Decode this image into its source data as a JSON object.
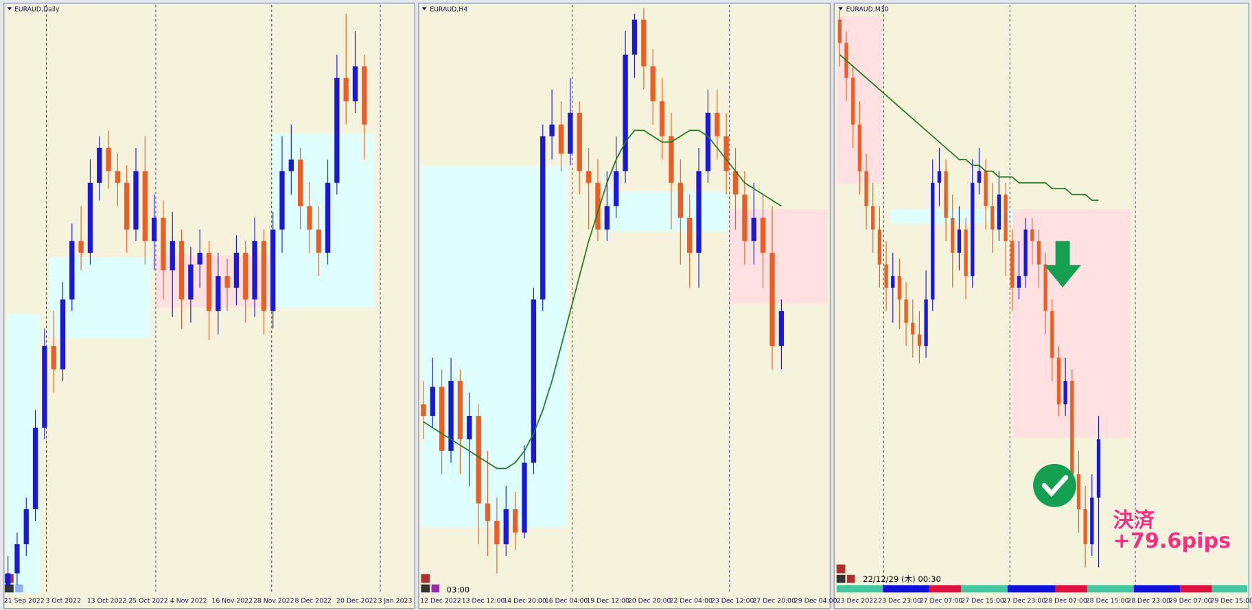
{
  "up_color": "#1a1ad6",
  "down_color": "#ec5f24",
  "ma_color": "#1f7a1f",
  "panels": [
    {
      "title": "EURAUD,Daily",
      "ylim": [
        0,
        100
      ],
      "ohlc": [
        [
          1,
          6,
          0,
          3
        ],
        [
          3,
          10,
          1,
          8
        ],
        [
          8,
          16,
          6,
          14
        ],
        [
          14,
          31,
          12,
          28
        ],
        [
          28,
          45,
          26,
          42
        ],
        [
          42,
          48,
          34,
          38
        ],
        [
          38,
          53,
          36,
          50
        ],
        [
          50,
          63,
          48,
          60
        ],
        [
          60,
          66,
          55,
          58
        ],
        [
          58,
          74,
          56,
          70
        ],
        [
          70,
          78,
          67,
          76
        ],
        [
          76,
          79,
          69,
          72
        ],
        [
          72,
          75,
          66,
          70
        ],
        [
          70,
          73,
          58,
          62
        ],
        [
          62,
          76,
          60,
          72
        ],
        [
          72,
          78,
          56,
          60
        ],
        [
          60,
          68,
          55,
          64
        ],
        [
          64,
          67,
          50,
          55
        ],
        [
          55,
          65,
          47,
          60
        ],
        [
          60,
          62,
          45,
          50
        ],
        [
          50,
          59,
          46,
          56
        ],
        [
          56,
          62,
          52,
          58
        ],
        [
          58,
          60,
          43,
          48
        ],
        [
          48,
          58,
          44,
          54
        ],
        [
          54,
          57,
          48,
          52
        ],
        [
          52,
          61,
          49,
          58
        ],
        [
          58,
          60,
          46,
          50
        ],
        [
          50,
          64,
          47,
          60
        ],
        [
          60,
          62,
          44,
          48
        ],
        [
          48,
          65,
          45,
          62
        ],
        [
          62,
          78,
          58,
          72
        ],
        [
          72,
          80,
          68,
          74
        ],
        [
          74,
          76,
          62,
          66
        ],
        [
          66,
          70,
          58,
          62
        ],
        [
          62,
          66,
          54,
          58
        ],
        [
          58,
          74,
          56,
          70
        ],
        [
          70,
          92,
          68,
          88
        ],
        [
          88,
          99,
          80,
          84
        ],
        [
          84,
          96,
          82,
          90
        ],
        [
          90,
          92,
          74,
          80
        ]
      ],
      "time_labels": [
        "21 Sep 2022",
        "3 Oct 2022",
        "13 Oct 2022",
        "25 Oct 2022",
        "4 Nov 2022",
        "16 Nov 2022",
        "28 Nov 2022",
        "8 Dec 2022",
        "20 Dec 2022",
        "3 Jan 2023"
      ]
    },
    {
      "title": "EURAUD,H4",
      "ylim": [
        0,
        100
      ],
      "ohlc": [
        [
          32,
          36,
          26,
          30
        ],
        [
          30,
          40,
          28,
          35
        ],
        [
          35,
          38,
          20,
          24
        ],
        [
          24,
          40,
          22,
          36
        ],
        [
          36,
          38,
          20,
          26
        ],
        [
          26,
          34,
          18,
          30
        ],
        [
          30,
          32,
          8,
          15
        ],
        [
          15,
          24,
          6,
          12
        ],
        [
          12,
          16,
          3,
          8
        ],
        [
          8,
          18,
          6,
          14
        ],
        [
          14,
          17,
          7,
          10
        ],
        [
          10,
          25,
          9,
          22
        ],
        [
          22,
          52,
          20,
          50
        ],
        [
          50,
          80,
          48,
          78
        ],
        [
          78,
          86,
          74,
          80
        ],
        [
          80,
          84,
          72,
          75
        ],
        [
          75,
          88,
          73,
          82
        ],
        [
          82,
          84,
          68,
          72
        ],
        [
          72,
          76,
          62,
          70
        ],
        [
          70,
          74,
          60,
          62
        ],
        [
          62,
          72,
          60,
          66
        ],
        [
          66,
          78,
          64,
          72
        ],
        [
          72,
          96,
          70,
          92
        ],
        [
          92,
          99,
          88,
          98
        ],
        [
          98,
          100,
          86,
          90
        ],
        [
          90,
          93,
          80,
          84
        ],
        [
          84,
          88,
          74,
          78
        ],
        [
          78,
          82,
          62,
          70
        ],
        [
          70,
          74,
          56,
          64
        ],
        [
          64,
          68,
          52,
          58
        ],
        [
          58,
          76,
          52,
          72
        ],
        [
          72,
          86,
          70,
          82
        ],
        [
          82,
          86,
          74,
          78
        ],
        [
          78,
          82,
          68,
          72
        ],
        [
          72,
          76,
          62,
          68
        ],
        [
          68,
          72,
          56,
          60
        ],
        [
          60,
          70,
          56,
          64
        ],
        [
          64,
          68,
          52,
          58
        ],
        [
          58,
          66,
          38,
          42
        ],
        [
          42,
          50,
          38,
          48
        ]
      ],
      "ma": [
        29,
        28,
        27,
        26,
        25,
        24,
        23,
        22,
        21,
        21,
        22,
        24,
        27,
        31,
        36,
        42,
        48,
        54,
        60,
        65,
        70,
        74,
        77,
        79,
        79,
        78,
        77,
        77,
        78,
        79,
        79,
        78,
        76,
        74,
        72,
        70,
        69,
        68,
        67,
        66
      ],
      "time_labels": [
        "12 Dec 2022",
        "13 Dec 12:00",
        "14 Dec 20:00",
        "16 Dec 04:00",
        "19 Dec 12:00",
        "20 Dec 20:00",
        "22 Dec 04:00",
        "23 Dec 12:00",
        "27 Dec 20:00",
        "29 Dec 04:00"
      ],
      "cursor_time": "03:00"
    },
    {
      "title": "EURAUD,M30",
      "ylim": [
        0,
        100
      ],
      "ohlc": [
        [
          98,
          100,
          90,
          94
        ],
        [
          94,
          96,
          84,
          88
        ],
        [
          88,
          90,
          76,
          80
        ],
        [
          80,
          84,
          68,
          72
        ],
        [
          72,
          75,
          62,
          66
        ],
        [
          66,
          70,
          58,
          62
        ],
        [
          62,
          66,
          52,
          56
        ],
        [
          56,
          60,
          48,
          52
        ],
        [
          52,
          58,
          46,
          54
        ],
        [
          54,
          57,
          45,
          50
        ],
        [
          50,
          53,
          42,
          46
        ],
        [
          46,
          50,
          40,
          44
        ],
        [
          44,
          48,
          39,
          42
        ],
        [
          42,
          55,
          40,
          50
        ],
        [
          50,
          74,
          48,
          70
        ],
        [
          70,
          76,
          66,
          72
        ],
        [
          72,
          74,
          60,
          64
        ],
        [
          64,
          68,
          52,
          58
        ],
        [
          58,
          66,
          55,
          62
        ],
        [
          62,
          64,
          50,
          54
        ],
        [
          54,
          74,
          52,
          70
        ],
        [
          70,
          76,
          68,
          72
        ],
        [
          72,
          74,
          62,
          66
        ],
        [
          66,
          70,
          58,
          62
        ],
        [
          62,
          72,
          60,
          68
        ],
        [
          68,
          70,
          54,
          60
        ],
        [
          60,
          62,
          48,
          52
        ],
        [
          52,
          60,
          50,
          54
        ],
        [
          54,
          64,
          52,
          62
        ],
        [
          62,
          64,
          56,
          60
        ],
        [
          60,
          62,
          52,
          56
        ],
        [
          56,
          58,
          44,
          48
        ],
        [
          48,
          50,
          36,
          40
        ],
        [
          40,
          42,
          30,
          32
        ],
        [
          32,
          40,
          30,
          36
        ],
        [
          36,
          38,
          18,
          20
        ],
        [
          20,
          24,
          10,
          14
        ],
        [
          14,
          18,
          4,
          8
        ],
        [
          8,
          20,
          6,
          16
        ],
        [
          16,
          30,
          4,
          26
        ]
      ],
      "ma": [
        92,
        91,
        90,
        89,
        88,
        87,
        86,
        85,
        84,
        83,
        82,
        81,
        80,
        79,
        78,
        77,
        76,
        75,
        74,
        74,
        73,
        73,
        72,
        72,
        71,
        71,
        71,
        70,
        70,
        70,
        70,
        70,
        69,
        69,
        69,
        68,
        68,
        68,
        67,
        67
      ],
      "time_labels": [
        "23 Dec 2022",
        "23 Dec 23:00",
        "27 Dec 07:00",
        "27 Dec 15:00",
        "27 Dec 23:00",
        "28 Dec 07:00",
        "28 Dec 15:00",
        "28 Dec 23:00",
        "29 Dec 07:00",
        "29 Dec 15:00"
      ],
      "cursor_time": "22/12/29 (木) 00:30"
    }
  ],
  "annotation": {
    "settle": "決済",
    "pips": "+79.6pips"
  }
}
